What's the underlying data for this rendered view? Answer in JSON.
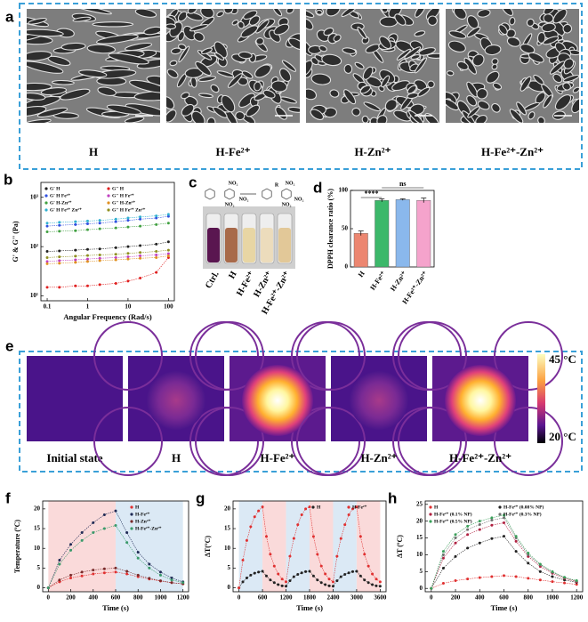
{
  "figure": {
    "a": {
      "label": "a",
      "captions": [
        "H",
        "H-Fe²⁺",
        "H-Zn²⁺",
        "H-Fe²⁺-Zn²⁺"
      ]
    },
    "c": {
      "label": "c",
      "captions": [
        "Ctrl.",
        "H",
        "H-Fe²⁺",
        "H-Zn²⁺",
        "H-Fe²⁺-Zn²⁺"
      ],
      "chem_texts": [
        "NO₂",
        "NO₂",
        "NO₂",
        "R",
        "NO₂",
        "NO₂",
        "NO₂"
      ]
    },
    "e": {
      "label": "e",
      "captions": [
        "Initial state",
        "H",
        "H-Fe²⁺",
        "H-Zn²⁺",
        "H-Fe²⁺-Zn²⁺"
      ],
      "colorbar_max": "45 °C",
      "colorbar_min": "20 °C"
    }
  },
  "chart_data": [
    {
      "label": "b",
      "type": "line",
      "xscale": "log",
      "yscale": "log",
      "xlim": [
        0.07,
        140
      ],
      "ylim": [
        8,
        2000
      ],
      "xticks": [
        0.1,
        1,
        10,
        100
      ],
      "yticks": [
        {
          "value": 10,
          "label": "10¹"
        },
        {
          "value": 100,
          "label": "10²"
        },
        {
          "value": 1000,
          "label": "10³"
        }
      ],
      "xlabel": "Angular Frequency (Rad/s)",
      "ylabel": "G' & G'' (Pa)",
      "legend": {
        "loc": "upper left",
        "columns": 2
      },
      "x": [
        0.1,
        0.2,
        0.5,
        1,
        2,
        5,
        10,
        20,
        50,
        100
      ],
      "series": [
        {
          "name": "G' H",
          "color": "#222222",
          "values": [
            80,
            82,
            85,
            88,
            90,
            95,
            100,
            105,
            112,
            125
          ]
        },
        {
          "name": "G'' H",
          "color": "#e02020",
          "values": [
            15,
            15,
            16,
            16,
            17,
            18,
            20,
            23,
            30,
            60
          ]
        },
        {
          "name": "G' H Fe²⁺",
          "color": "#3050e0",
          "values": [
            260,
            270,
            280,
            290,
            300,
            320,
            340,
            360,
            380,
            410
          ]
        },
        {
          "name": "G'' H Fe²⁺",
          "color": "#c040c0",
          "values": [
            50,
            52,
            54,
            56,
            58,
            60,
            62,
            65,
            68,
            72
          ]
        },
        {
          "name": "G' H-Zn²⁺",
          "color": "#40a040",
          "values": [
            200,
            205,
            210,
            220,
            230,
            240,
            250,
            260,
            280,
            300
          ]
        },
        {
          "name": "G'' H-Zn²⁺",
          "color": "#e09020",
          "values": [
            45,
            46,
            48,
            50,
            52,
            54,
            56,
            58,
            60,
            65
          ]
        },
        {
          "name": "G' H Fe²⁺ Zn²⁺",
          "color": "#30b0d0",
          "values": [
            300,
            310,
            320,
            330,
            340,
            360,
            380,
            400,
            420,
            450
          ]
        },
        {
          "name": "G'' H Fe²⁺ Zn²⁺",
          "color": "#909020",
          "values": [
            60,
            62,
            64,
            66,
            68,
            70,
            73,
            76,
            80,
            85
          ]
        }
      ]
    },
    {
      "label": "d",
      "type": "bar",
      "ylim": [
        0,
        100
      ],
      "yticks": [
        0,
        50,
        100
      ],
      "ylabel": "DPPH clearance ratio (%)",
      "categories": [
        "H",
        "H-Fe²⁺",
        "H-Zn²⁺",
        "H-Fe²⁺-Zn²⁺"
      ],
      "values": [
        44,
        87,
        88,
        87
      ],
      "errors": [
        3,
        2,
        1,
        3
      ],
      "colors": [
        "#ec8670",
        "#3cb86a",
        "#8ab8ec",
        "#f5a3cc"
      ],
      "annotations": [
        "****",
        "ns"
      ]
    },
    {
      "label": "f",
      "type": "line",
      "xlim": [
        -50,
        1250
      ],
      "ylim": [
        -1,
        22
      ],
      "xticks": [
        0,
        200,
        400,
        600,
        800,
        1000,
        1200
      ],
      "yticks": [
        0,
        5,
        10,
        15,
        20
      ],
      "xlabel": "Time (s)",
      "ylabel": "Temperature (ºC)",
      "legend": {
        "loc": "upper right",
        "columns": 1
      },
      "shaded": [
        {
          "start": 0,
          "end": 600,
          "color": "#fadada"
        },
        {
          "start": 600,
          "end": 1200,
          "color": "#dbe9f5"
        }
      ],
      "x": [
        0,
        100,
        200,
        300,
        400,
        500,
        600,
        700,
        800,
        900,
        1000,
        1100,
        1200
      ],
      "series": [
        {
          "name": "H",
          "color": "#e03030",
          "values": [
            0,
            1.5,
            2.5,
            3,
            3.5,
            3.8,
            4,
            3.5,
            2.8,
            2.2,
            1.7,
            1.3,
            1
          ]
        },
        {
          "name": "H-Fe²⁺",
          "color": "#1f2a55",
          "values": [
            0,
            7,
            11,
            14,
            16.5,
            18.5,
            19.5,
            14,
            9,
            6,
            4,
            2.5,
            1.5
          ]
        },
        {
          "name": "H-Zn²⁺",
          "color": "#7a2a2a",
          "values": [
            0,
            2,
            3.2,
            4,
            4.5,
            4.8,
            5,
            4.2,
            3.2,
            2.4,
            1.8,
            1.3,
            1
          ]
        },
        {
          "name": "H-Fe²⁺-Zn²⁺",
          "color": "#3a9a6a",
          "values": [
            0,
            6,
            9.5,
            12,
            14,
            15,
            15.8,
            11.5,
            7.5,
            5,
            3.2,
            2,
            1.3
          ]
        }
      ]
    },
    {
      "label": "g",
      "type": "line",
      "xlim": [
        -150,
        3750
      ],
      "ylim": [
        -1,
        22
      ],
      "xticks": [
        0,
        600,
        1200,
        1800,
        2400,
        3000,
        3600
      ],
      "yticks": [
        0,
        5,
        10,
        15,
        20
      ],
      "xlabel": "Time (s)",
      "ylabel": "ΔT(ºC)",
      "legend": {
        "loc": "upper right",
        "columns": 2
      },
      "shaded": [
        {
          "start": 0,
          "end": 600,
          "color": "#dbe9f5"
        },
        {
          "start": 600,
          "end": 1200,
          "color": "#fadada"
        },
        {
          "start": 1200,
          "end": 1800,
          "color": "#dbe9f5"
        },
        {
          "start": 1800,
          "end": 2400,
          "color": "#fadada"
        },
        {
          "start": 2400,
          "end": 3000,
          "color": "#dbe9f5"
        },
        {
          "start": 3000,
          "end": 3600,
          "color": "#fadada"
        }
      ],
      "x": [
        0,
        100,
        200,
        300,
        400,
        500,
        600,
        700,
        800,
        900,
        1000,
        1100,
        1200,
        1300,
        1400,
        1500,
        1600,
        1700,
        1800,
        1900,
        2000,
        2100,
        2200,
        2300,
        2400,
        2500,
        2600,
        2700,
        2800,
        2900,
        3000,
        3100,
        3200,
        3300,
        3400,
        3500,
        3600
      ],
      "series": [
        {
          "name": "H",
          "color": "#222222",
          "values": [
            0,
            1.5,
            2.5,
            3.2,
            3.7,
            4,
            4.2,
            3,
            2,
            1.3,
            0.8,
            0.5,
            0.4,
            1.8,
            2.8,
            3.4,
            3.8,
            4.1,
            4.2,
            3,
            2,
            1.3,
            0.8,
            0.5,
            0.4,
            1.8,
            2.8,
            3.4,
            3.8,
            4.1,
            4.2,
            3,
            2,
            1.3,
            0.8,
            0.5,
            0.4
          ]
        },
        {
          "name": "H-Fe²⁺",
          "color": "#e03030",
          "values": [
            0,
            7,
            12,
            15.5,
            18,
            19.5,
            20.5,
            13,
            8.5,
            5.5,
            3.5,
            2.2,
            1.5,
            8,
            12.5,
            16,
            18.5,
            20,
            20.5,
            13,
            8.5,
            5.5,
            3.5,
            2.2,
            1.5,
            8,
            12.5,
            16,
            18.5,
            20,
            20.5,
            13,
            8.5,
            5.5,
            3.5,
            2.2,
            1.5
          ]
        }
      ]
    },
    {
      "label": "h",
      "type": "line",
      "xlim": [
        -50,
        1250
      ],
      "ylim": [
        -1,
        26
      ],
      "xticks": [
        0,
        200,
        400,
        600,
        800,
        1000,
        1200
      ],
      "yticks": [
        0,
        5,
        10,
        15,
        20,
        25
      ],
      "xlabel": "Time (s)",
      "ylabel": "ΔT (ºC)",
      "legend": {
        "loc": "upper left",
        "columns": 2
      },
      "x": [
        0,
        100,
        200,
        300,
        400,
        500,
        600,
        700,
        800,
        900,
        1000,
        1100,
        1200
      ],
      "series": [
        {
          "name": "H",
          "color": "#e03030",
          "values": [
            0,
            1.5,
            2.3,
            2.8,
            3.2,
            3.5,
            3.8,
            3.5,
            3,
            2.5,
            2,
            1.6,
            1.2
          ]
        },
        {
          "name": "H-Fe²⁺ (0.08% NP)",
          "color": "#222222",
          "values": [
            0,
            6,
            9.5,
            12,
            13.5,
            14.8,
            15.5,
            11,
            7.5,
            5,
            3.5,
            2.5,
            1.8
          ]
        },
        {
          "name": "H-Fe²⁺ (0.1% NP)",
          "color": "#b02040",
          "values": [
            0,
            9,
            13.5,
            16,
            17.5,
            18.8,
            19.5,
            14,
            9.5,
            6.5,
            4.5,
            3,
            2
          ]
        },
        {
          "name": "H-Fe²⁺ (0.3% NP)",
          "color": "#707070",
          "values": [
            0,
            10,
            15,
            17.5,
            19,
            20.3,
            21,
            15,
            10,
            7,
            4.8,
            3.2,
            2.2
          ]
        },
        {
          "name": "H-Fe²⁺ (0.5% NP)",
          "color": "#3aa05a",
          "values": [
            0,
            11,
            16,
            18.5,
            20,
            21,
            21.8,
            15.5,
            10.5,
            7.2,
            5,
            3.3,
            2.3
          ]
        }
      ]
    }
  ]
}
